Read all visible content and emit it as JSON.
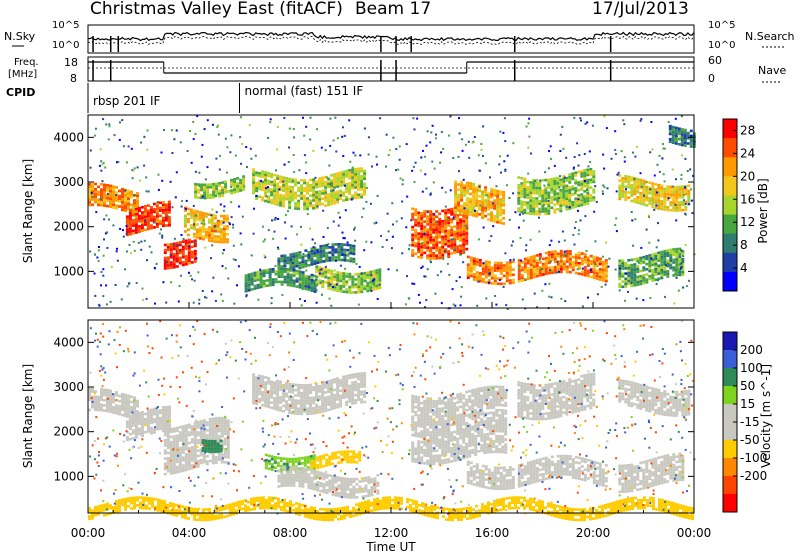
{
  "header": {
    "title": "Christmas Valley East (fitACF)",
    "beam": "Beam 17",
    "date": "17/Jul/2013"
  },
  "params": {
    "nsky_label": "N.Sky",
    "nsearch_label": "N.Search",
    "freq_label_line1": "Freq.",
    "freq_label_line2": "[MHz]",
    "nave_label": "Nave",
    "cpid_label": "CPID",
    "noise_ticks": [
      "10^5",
      "10^0"
    ],
    "freq_ticks": [
      "18",
      "8"
    ],
    "nave_ticks": [
      "60",
      "0"
    ],
    "cpid_segments": [
      {
        "label": "rbsp 201 IF",
        "start_hour": 0.0
      },
      {
        "label": "normal (fast) 151 IF",
        "start_hour": 6.0
      }
    ]
  },
  "time_axis": {
    "title": "Time UT",
    "ticks": [
      "00:00",
      "04:00",
      "08:00",
      "12:00",
      "16:00",
      "20:00",
      "00:00"
    ],
    "range_hours": [
      0,
      24
    ]
  },
  "colors": {
    "power_scale": [
      "#0000ff",
      "#1f3fa6",
      "#2e7d6e",
      "#48a640",
      "#a8d52c",
      "#f2c61a",
      "#ff9900",
      "#ff4d00",
      "#ff0000"
    ],
    "velocity_scale": [
      "#1a1ab3",
      "#3b5fd9",
      "#2e8b57",
      "#7ed321",
      "#c8c8c0",
      "#c8c8c0",
      "#ffcc00",
      "#ff8800",
      "#ff4400",
      "#ff0000"
    ]
  },
  "chart_data": [
    {
      "type": "heatmap",
      "panel": "power",
      "ylabel": "Slant Range [km]",
      "ylim": [
        180,
        4500
      ],
      "yticks": [
        "1000",
        "2000",
        "3000",
        "4000"
      ],
      "colorbar_label": "Power [dB]",
      "colorbar_ticks": [
        "4",
        "8",
        "12",
        "16",
        "20",
        "24",
        "28"
      ],
      "colorbar_range": [
        0,
        30
      ],
      "bands": [
        {
          "t0": 0.0,
          "t1": 2.0,
          "r0": 2350,
          "r1": 2850,
          "level": 22
        },
        {
          "t0": 1.5,
          "t1": 3.2,
          "r0": 1900,
          "r1": 2450,
          "level": 26
        },
        {
          "t0": 3.0,
          "t1": 4.2,
          "r0": 1200,
          "r1": 1750,
          "level": 27
        },
        {
          "t0": 3.8,
          "t1": 5.5,
          "r0": 1800,
          "r1": 2400,
          "level": 20
        },
        {
          "t0": 4.2,
          "t1": 6.2,
          "r0": 2800,
          "r1": 3100,
          "level": 14
        },
        {
          "t0": 6.5,
          "t1": 11.0,
          "r0": 2550,
          "r1": 3200,
          "level": 16
        },
        {
          "t0": 7.5,
          "t1": 10.5,
          "r0": 1100,
          "r1": 1500,
          "level": 9
        },
        {
          "t0": 6.2,
          "t1": 9.0,
          "r0": 550,
          "r1": 950,
          "level": 10
        },
        {
          "t0": 9.0,
          "t1": 11.5,
          "r0": 650,
          "r1": 1100,
          "level": 14
        },
        {
          "t0": 12.8,
          "t1": 15.0,
          "r0": 1400,
          "r1": 2500,
          "level": 25
        },
        {
          "t0": 14.5,
          "t1": 16.5,
          "r0": 2200,
          "r1": 2900,
          "level": 20
        },
        {
          "t0": 15.0,
          "t1": 20.5,
          "r0": 850,
          "r1": 1350,
          "level": 23
        },
        {
          "t0": 17.0,
          "t1": 20.0,
          "r0": 2400,
          "r1": 3200,
          "level": 14
        },
        {
          "t0": 21.0,
          "t1": 23.8,
          "r0": 2500,
          "r1": 3050,
          "level": 18
        },
        {
          "t0": 21.0,
          "t1": 23.5,
          "r0": 800,
          "r1": 1400,
          "level": 12
        },
        {
          "t0": 23.0,
          "t1": 24.0,
          "r0": 3900,
          "r1": 4300,
          "level": 8
        }
      ]
    },
    {
      "type": "heatmap",
      "panel": "velocity",
      "ylabel": "Slant Range [km]",
      "ylim": [
        180,
        4500
      ],
      "yticks": [
        "1000",
        "2000",
        "3000",
        "4000"
      ],
      "colorbar_label": "Velocity [m s^-1]",
      "colorbar_ticks": [
        "200",
        "100",
        "50",
        "15",
        "-15",
        "-50",
        "-100",
        "-200"
      ],
      "colorbar_range": [
        -250,
        250
      ],
      "bands": [
        {
          "t0": 0.0,
          "t1": 2.0,
          "r0": 2350,
          "r1": 2850,
          "level": 0
        },
        {
          "t0": 1.5,
          "t1": 3.2,
          "r0": 1900,
          "r1": 2450,
          "level": 0
        },
        {
          "t0": 3.0,
          "t1": 5.5,
          "r0": 1200,
          "r1": 2200,
          "level": 0
        },
        {
          "t0": 4.5,
          "t1": 5.3,
          "r0": 1700,
          "r1": 1950,
          "level": 80
        },
        {
          "t0": 6.5,
          "t1": 11.0,
          "r0": 2550,
          "r1": 3200,
          "level": 0
        },
        {
          "t0": 7.0,
          "t1": 9.0,
          "r0": 1250,
          "r1": 1550,
          "level": 45
        },
        {
          "t0": 8.8,
          "t1": 10.8,
          "r0": 1200,
          "r1": 1450,
          "level": -40
        },
        {
          "t0": 7.5,
          "t1": 11.5,
          "r0": 650,
          "r1": 1100,
          "level": 0
        },
        {
          "t0": 12.8,
          "t1": 16.5,
          "r0": 1400,
          "r1": 2900,
          "level": 0
        },
        {
          "t0": 15.0,
          "t1": 20.5,
          "r0": 850,
          "r1": 1350,
          "level": 0
        },
        {
          "t0": 17.0,
          "t1": 20.0,
          "r0": 2400,
          "r1": 3200,
          "level": 0
        },
        {
          "t0": 21.0,
          "t1": 23.8,
          "r0": 2500,
          "r1": 3050,
          "level": 0
        },
        {
          "t0": 21.0,
          "t1": 23.5,
          "r0": 800,
          "r1": 1400,
          "level": 0
        },
        {
          "t0": 0.0,
          "t1": 24.0,
          "r0": 180,
          "r1": 420,
          "level": -40
        }
      ]
    }
  ]
}
